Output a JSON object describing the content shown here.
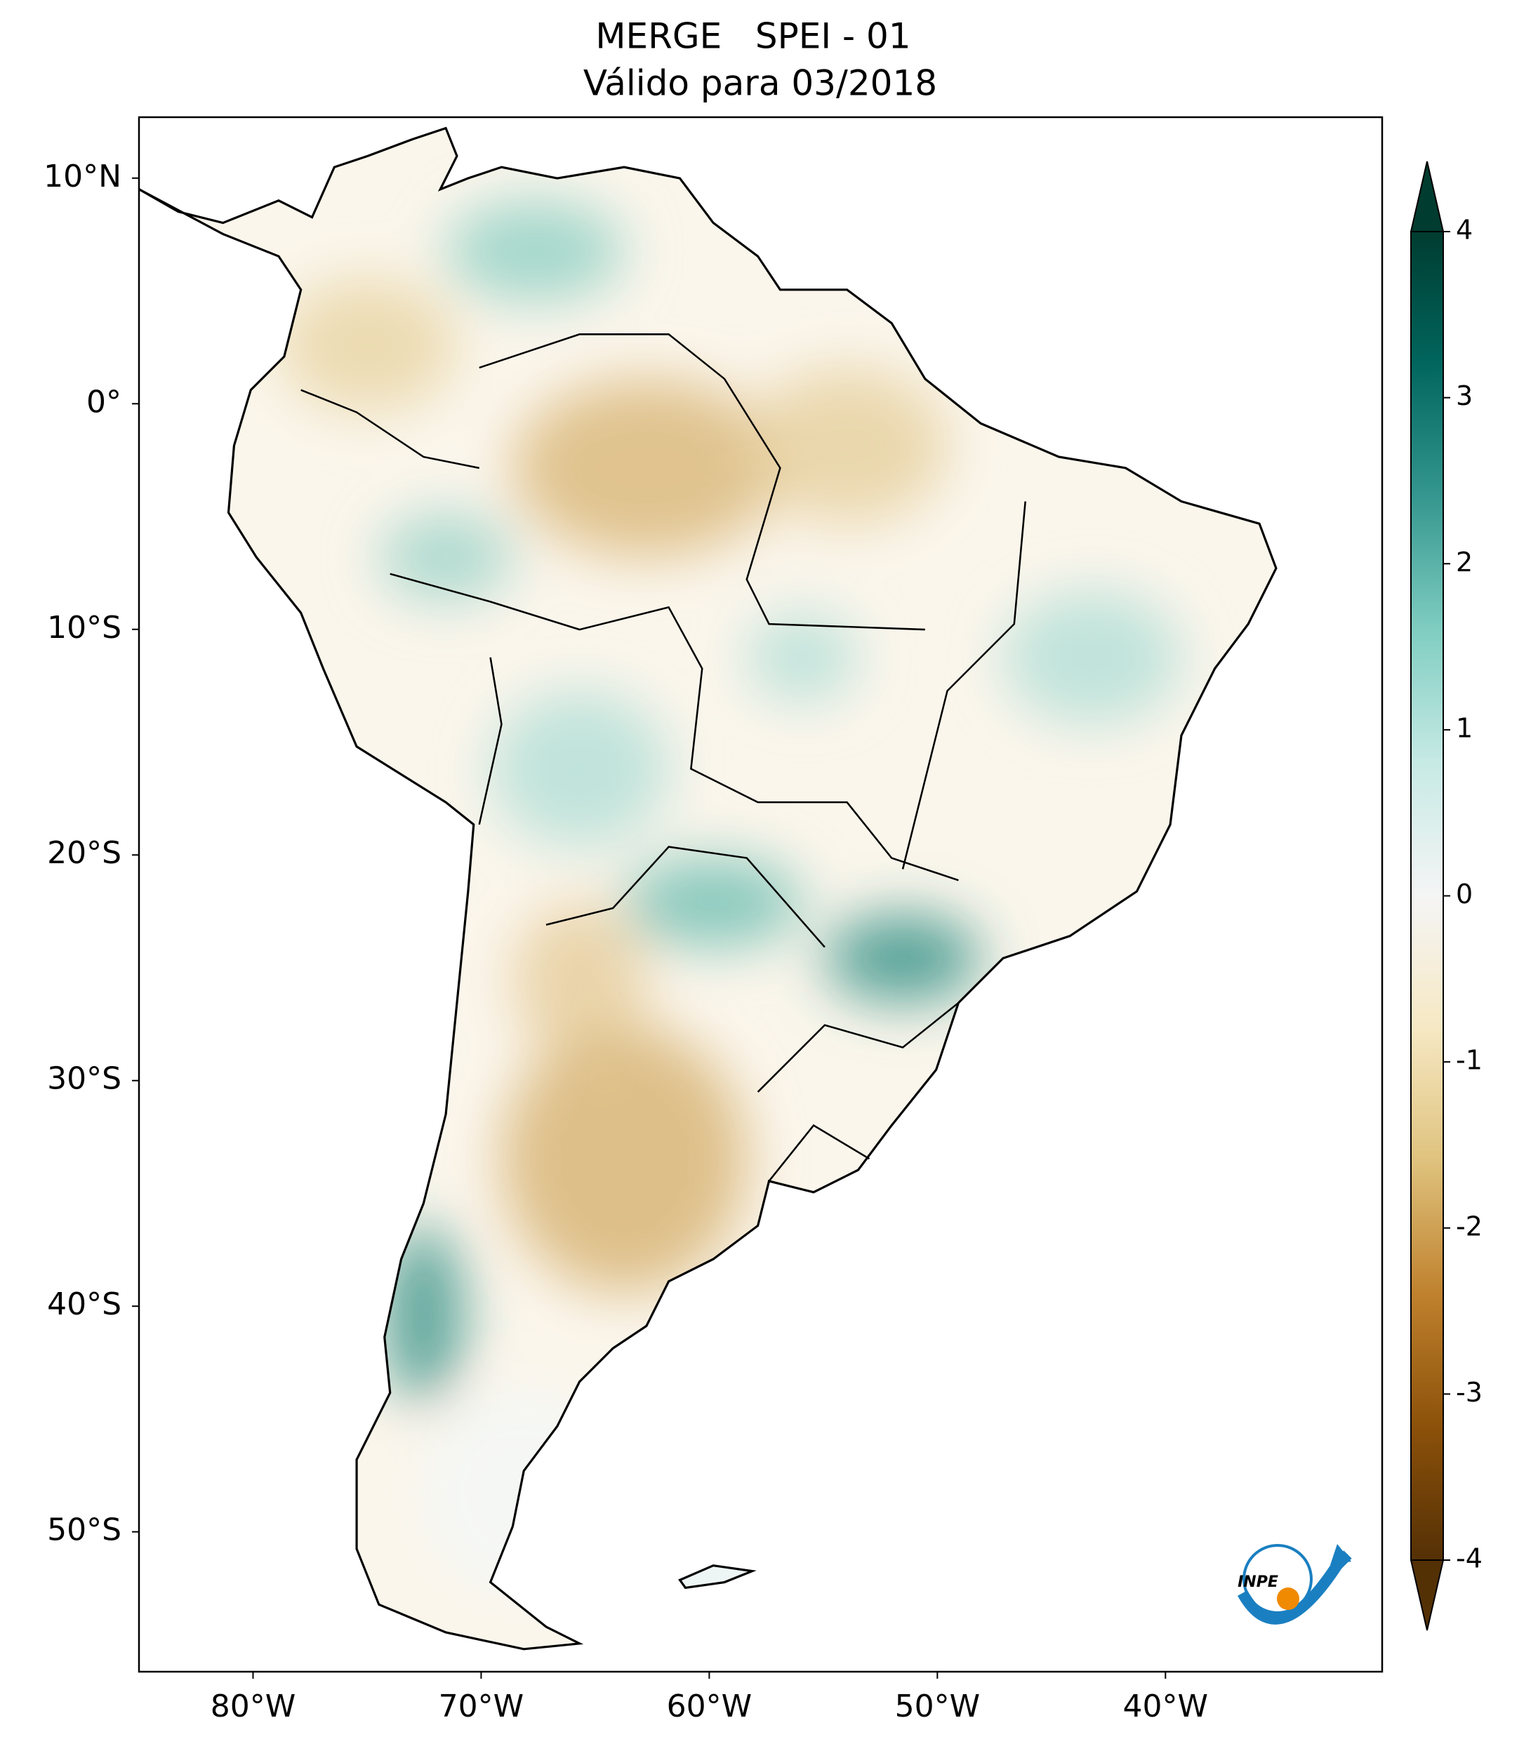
{
  "chart_data": {
    "type": "map",
    "title": "MERGE   SPEI - 01",
    "subtitle": "Válido para 03/2018",
    "xlim": [
      -85,
      -30.5
    ],
    "ylim": [
      -56.2,
      12.7
    ],
    "xticks": [
      {
        "value": -80,
        "label": "80°W"
      },
      {
        "value": -70,
        "label": "70°W"
      },
      {
        "value": -60,
        "label": "60°W"
      },
      {
        "value": -50,
        "label": "50°W"
      },
      {
        "value": -40,
        "label": "40°W"
      }
    ],
    "yticks": [
      {
        "value": 10,
        "label": "10°N"
      },
      {
        "value": 0,
        "label": "0°"
      },
      {
        "value": -10,
        "label": "10°S"
      },
      {
        "value": -20,
        "label": "20°S"
      },
      {
        "value": -30,
        "label": "30°S"
      },
      {
        "value": -40,
        "label": "40°S"
      },
      {
        "value": -50,
        "label": "50°S"
      }
    ],
    "colorbar": {
      "lim": [
        -4,
        4
      ],
      "ticks": [
        -4,
        -3,
        -2,
        -1,
        0,
        1,
        2,
        3,
        4
      ],
      "colors": [
        "#543005",
        "#8c510a",
        "#bf812d",
        "#dfc27d",
        "#f6e8c3",
        "#f5f5f5",
        "#c7eae5",
        "#80cdc1",
        "#35978f",
        "#01665e",
        "#003c30"
      ]
    },
    "logo": "INPE"
  }
}
